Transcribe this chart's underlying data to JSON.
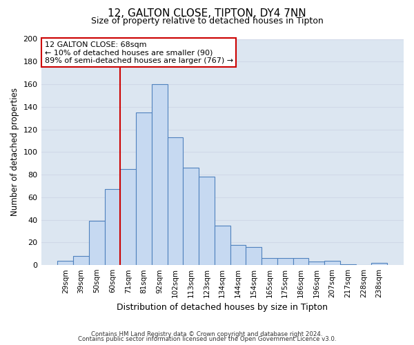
{
  "title": "12, GALTON CLOSE, TIPTON, DY4 7NN",
  "subtitle": "Size of property relative to detached houses in Tipton",
  "xlabel": "Distribution of detached houses by size in Tipton",
  "ylabel": "Number of detached properties",
  "bar_labels": [
    "29sqm",
    "39sqm",
    "50sqm",
    "60sqm",
    "71sqm",
    "81sqm",
    "92sqm",
    "102sqm",
    "113sqm",
    "123sqm",
    "134sqm",
    "144sqm",
    "154sqm",
    "165sqm",
    "175sqm",
    "186sqm",
    "196sqm",
    "207sqm",
    "217sqm",
    "228sqm",
    "238sqm"
  ],
  "bar_values": [
    4,
    8,
    39,
    67,
    85,
    135,
    160,
    113,
    86,
    78,
    35,
    18,
    16,
    6,
    6,
    6,
    3,
    4,
    1,
    0,
    2
  ],
  "bar_color": "#c6d9f1",
  "bar_edge_color": "#4f81bd",
  "property_line_index": 4,
  "property_label": "12 GALTON CLOSE: 68sqm",
  "annotation_line1": "← 10% of detached houses are smaller (90)",
  "annotation_line2": "89% of semi-detached houses are larger (767) →",
  "annotation_box_color": "#ffffff",
  "annotation_box_edge": "#cc0000",
  "property_line_color": "#cc0000",
  "ylim": [
    0,
    200
  ],
  "yticks": [
    0,
    20,
    40,
    60,
    80,
    100,
    120,
    140,
    160,
    180,
    200
  ],
  "grid_color": "#d0d8e8",
  "footer_line1": "Contains HM Land Registry data © Crown copyright and database right 2024.",
  "footer_line2": "Contains public sector information licensed under the Open Government Licence v3.0.",
  "background_color": "#dce6f1"
}
